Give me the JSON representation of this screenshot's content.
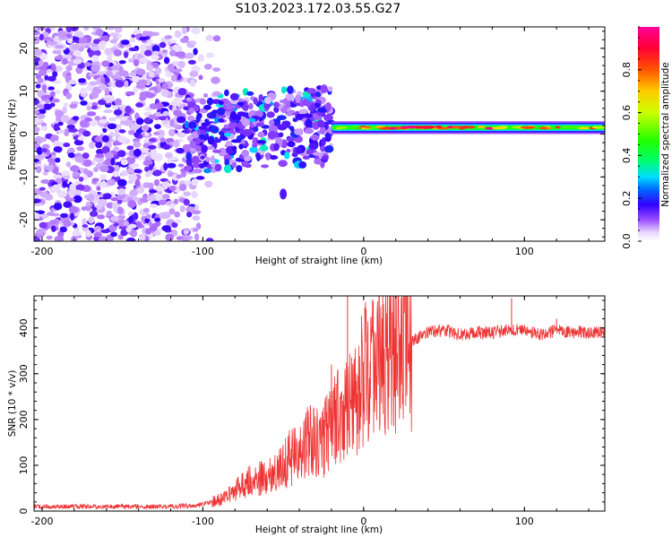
{
  "chart_data": [
    {
      "type": "heatmap",
      "title": "S103.2023.172.03.55.G27",
      "xlabel": "Height of straight line (km)",
      "ylabel": "Frequency (Hz)",
      "xlim": [
        -205,
        150
      ],
      "ylim": [
        -25,
        25
      ],
      "xticks": [
        -200,
        -100,
        0,
        100
      ],
      "xtick_labels": [
        "-200",
        "-100",
        "0",
        "100"
      ],
      "yticks": [
        -20,
        -10,
        0,
        10,
        20
      ],
      "ytick_labels": [
        "-20",
        "-10",
        "0",
        "10",
        "20"
      ],
      "colorbar": {
        "label": "Normalized spectral amplitude",
        "range": [
          0,
          1
        ],
        "ticks": [
          0,
          0.2,
          0.4,
          0.6,
          0.8
        ],
        "tick_labels": [
          "0.0",
          "0.2",
          "0.4",
          "0.6",
          "0.8"
        ],
        "colormap": "rainbow-white-low"
      },
      "features": [
        {
          "name": "noise-region",
          "x_range": [
            -205,
            -95
          ],
          "y_range": [
            -25,
            25
          ],
          "amplitude": 0.15
        },
        {
          "name": "transition-region",
          "x_range": [
            -110,
            -20
          ],
          "y_range": [
            -8,
            10
          ],
          "amplitude": 0.35
        },
        {
          "name": "isolated-blob",
          "x": -50,
          "y": -14,
          "amplitude": 0.15
        },
        {
          "name": "carrier-line",
          "x_range": [
            -20,
            150
          ],
          "frequency": 1.5,
          "amplitude": 0.9
        }
      ]
    },
    {
      "type": "line",
      "xlabel": "Height of straight line (km)",
      "ylabel": "SNR (10 * v/v)",
      "xlim": [
        -205,
        150
      ],
      "ylim": [
        0,
        470
      ],
      "xticks": [
        -200,
        -100,
        0,
        100
      ],
      "xtick_labels": [
        "-200",
        "-100",
        "0",
        "100"
      ],
      "yticks": [
        0,
        100,
        200,
        300,
        400
      ],
      "ytick_labels": [
        "0",
        "100",
        "200",
        "300",
        "400"
      ],
      "color": "#ee3333",
      "series": [
        {
          "name": "SNR",
          "x": [
            -205,
            -180,
            -150,
            -120,
            -105,
            -95,
            -85,
            -75,
            -65,
            -55,
            -45,
            -35,
            -25,
            -18,
            -10,
            -5,
            0,
            5,
            10,
            15,
            20,
            25,
            30,
            40,
            50,
            60,
            70,
            80,
            90,
            100,
            110,
            120,
            130,
            140,
            150
          ],
          "y": [
            10,
            10,
            10,
            10,
            12,
            20,
            30,
            60,
            70,
            80,
            120,
            150,
            160,
            220,
            220,
            230,
            300,
            320,
            330,
            340,
            345,
            350,
            370,
            390,
            395,
            385,
            390,
            390,
            395,
            395,
            385,
            395,
            390,
            390,
            390
          ]
        }
      ],
      "spikes": [
        {
          "x": -10,
          "y": 470
        },
        {
          "x": 92,
          "y": 465
        },
        {
          "x": -20,
          "y": 320
        },
        {
          "x": 120,
          "y": 420
        }
      ]
    }
  ]
}
